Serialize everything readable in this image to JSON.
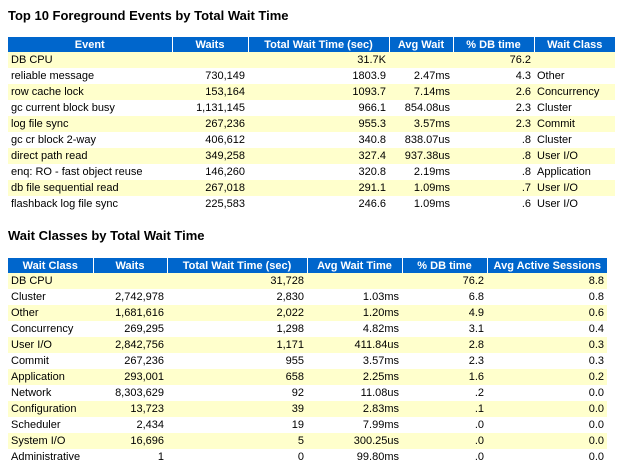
{
  "events": {
    "title": "Top 10 Foreground Events by Total Wait Time",
    "headers": [
      "Event",
      "Waits",
      "Total Wait Time (sec)",
      "Avg Wait",
      "% DB time",
      "Wait Class"
    ],
    "rows": [
      [
        "DB CPU",
        "",
        "31.7K",
        "",
        "76.2",
        ""
      ],
      [
        "reliable message",
        "730,149",
        "1803.9",
        "2.47ms",
        "4.3",
        "Other"
      ],
      [
        "row cache lock",
        "153,164",
        "1093.7",
        "7.14ms",
        "2.6",
        "Concurrency"
      ],
      [
        "gc current block busy",
        "1,131,145",
        "966.1",
        "854.08us",
        "2.3",
        "Cluster"
      ],
      [
        "log file sync",
        "267,236",
        "955.3",
        "3.57ms",
        "2.3",
        "Commit"
      ],
      [
        "gc cr block 2-way",
        "406,612",
        "340.8",
        "838.07us",
        ".8",
        "Cluster"
      ],
      [
        "direct path read",
        "349,258",
        "327.4",
        "937.38us",
        ".8",
        "User I/O"
      ],
      [
        "enq: RO - fast object reuse",
        "146,260",
        "320.8",
        "2.19ms",
        ".8",
        "Application"
      ],
      [
        "db file sequential read",
        "267,018",
        "291.1",
        "1.09ms",
        ".7",
        "User I/O"
      ],
      [
        "flashback log file sync",
        "225,583",
        "246.6",
        "1.09ms",
        ".6",
        "User I/O"
      ]
    ]
  },
  "classes": {
    "title": "Wait Classes by Total Wait Time",
    "headers": [
      "Wait Class",
      "Waits",
      "Total Wait Time (sec)",
      "Avg Wait Time",
      "% DB time",
      "Avg Active Sessions"
    ],
    "rows": [
      [
        "DB CPU",
        "",
        "31,728",
        "",
        "76.2",
        "8.8"
      ],
      [
        "Cluster",
        "2,742,978",
        "2,830",
        "1.03ms",
        "6.8",
        "0.8"
      ],
      [
        "Other",
        "1,681,616",
        "2,022",
        "1.20ms",
        "4.9",
        "0.6"
      ],
      [
        "Concurrency",
        "269,295",
        "1,298",
        "4.82ms",
        "3.1",
        "0.4"
      ],
      [
        "User I/O",
        "2,842,756",
        "1,171",
        "411.84us",
        "2.8",
        "0.3"
      ],
      [
        "Commit",
        "267,236",
        "955",
        "3.57ms",
        "2.3",
        "0.3"
      ],
      [
        "Application",
        "293,001",
        "658",
        "2.25ms",
        "1.6",
        "0.2"
      ],
      [
        "Network",
        "8,303,629",
        "92",
        "11.08us",
        ".2",
        "0.0"
      ],
      [
        "Configuration",
        "13,723",
        "39",
        "2.83ms",
        ".1",
        "0.0"
      ],
      [
        "Scheduler",
        "2,434",
        "19",
        "7.99ms",
        ".0",
        "0.0"
      ],
      [
        "System I/O",
        "16,696",
        "5",
        "300.25us",
        ".0",
        "0.0"
      ],
      [
        "Administrative",
        "1",
        "0",
        "99.80ms",
        ".0",
        "0.0"
      ]
    ]
  }
}
